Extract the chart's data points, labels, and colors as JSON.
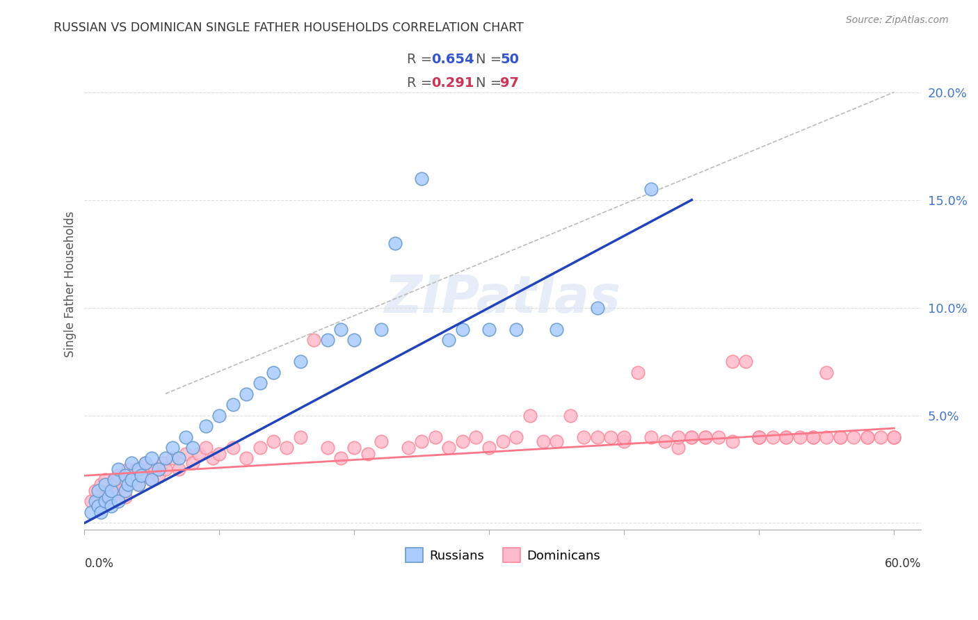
{
  "title": "RUSSIAN VS DOMINICAN SINGLE FATHER HOUSEHOLDS CORRELATION CHART",
  "source": "Source: ZipAtlas.com",
  "ylabel": "Single Father Households",
  "xlim": [
    0.0,
    0.62
  ],
  "ylim": [
    -0.003,
    0.225
  ],
  "ytick_vals": [
    0.0,
    0.05,
    0.1,
    0.15,
    0.2
  ],
  "ytick_labels": [
    "",
    "5.0%",
    "10.0%",
    "15.0%",
    "20.0%"
  ],
  "watermark": "ZIPatlas",
  "russian_color_face": "#aaccff",
  "russian_color_edge": "#6699cc",
  "dominican_color_face": "#ffbbcc",
  "dominican_color_edge": "#ff8899",
  "russian_line_color": "#2244bb",
  "dominican_line_color": "#ff7788",
  "dashed_line_color": "#bbbbbb",
  "title_color": "#333333",
  "source_color": "#888888",
  "ytick_color": "#4477cc",
  "ylabel_color": "#555555",
  "grid_color": "#dddddd",
  "russian_R": 0.654,
  "russian_N": 50,
  "dominican_R": 0.291,
  "dominican_N": 97,
  "russian_x": [
    0.005,
    0.008,
    0.01,
    0.01,
    0.012,
    0.015,
    0.015,
    0.018,
    0.02,
    0.02,
    0.022,
    0.025,
    0.025,
    0.03,
    0.03,
    0.032,
    0.035,
    0.035,
    0.04,
    0.04,
    0.042,
    0.045,
    0.05,
    0.05,
    0.055,
    0.06,
    0.065,
    0.07,
    0.075,
    0.08,
    0.09,
    0.1,
    0.11,
    0.12,
    0.13,
    0.14,
    0.16,
    0.18,
    0.19,
    0.2,
    0.22,
    0.23,
    0.25,
    0.27,
    0.28,
    0.3,
    0.32,
    0.35,
    0.38,
    0.42
  ],
  "russian_y": [
    0.005,
    0.01,
    0.008,
    0.015,
    0.005,
    0.01,
    0.018,
    0.012,
    0.008,
    0.015,
    0.02,
    0.01,
    0.025,
    0.015,
    0.022,
    0.018,
    0.02,
    0.028,
    0.018,
    0.025,
    0.022,
    0.028,
    0.02,
    0.03,
    0.025,
    0.03,
    0.035,
    0.03,
    0.04,
    0.035,
    0.045,
    0.05,
    0.055,
    0.06,
    0.065,
    0.07,
    0.075,
    0.085,
    0.09,
    0.085,
    0.09,
    0.13,
    0.16,
    0.085,
    0.09,
    0.09,
    0.09,
    0.09,
    0.1,
    0.155
  ],
  "dominican_x": [
    0.005,
    0.008,
    0.01,
    0.012,
    0.015,
    0.015,
    0.018,
    0.02,
    0.022,
    0.025,
    0.025,
    0.028,
    0.03,
    0.03,
    0.032,
    0.035,
    0.038,
    0.04,
    0.042,
    0.045,
    0.048,
    0.05,
    0.052,
    0.055,
    0.058,
    0.06,
    0.065,
    0.07,
    0.075,
    0.08,
    0.085,
    0.09,
    0.095,
    0.1,
    0.11,
    0.12,
    0.13,
    0.14,
    0.15,
    0.16,
    0.17,
    0.18,
    0.19,
    0.2,
    0.21,
    0.22,
    0.24,
    0.26,
    0.28,
    0.3,
    0.32,
    0.34,
    0.36,
    0.38,
    0.4,
    0.42,
    0.44,
    0.46,
    0.48,
    0.5,
    0.52,
    0.54,
    0.56,
    0.58,
    0.6,
    0.25,
    0.27,
    0.29,
    0.31,
    0.33,
    0.35,
    0.37,
    0.39,
    0.41,
    0.43,
    0.45,
    0.47,
    0.49,
    0.51,
    0.53,
    0.55,
    0.57,
    0.59,
    0.44,
    0.46,
    0.48,
    0.5,
    0.52,
    0.54,
    0.56,
    0.58,
    0.6,
    0.6,
    0.55,
    0.5,
    0.45,
    0.4
  ],
  "dominican_y": [
    0.01,
    0.015,
    0.01,
    0.018,
    0.012,
    0.02,
    0.015,
    0.012,
    0.018,
    0.015,
    0.022,
    0.018,
    0.012,
    0.02,
    0.025,
    0.02,
    0.025,
    0.018,
    0.022,
    0.028,
    0.025,
    0.02,
    0.025,
    0.022,
    0.028,
    0.025,
    0.03,
    0.025,
    0.032,
    0.028,
    0.032,
    0.035,
    0.03,
    0.032,
    0.035,
    0.03,
    0.035,
    0.038,
    0.035,
    0.04,
    0.085,
    0.035,
    0.03,
    0.035,
    0.032,
    0.038,
    0.035,
    0.04,
    0.038,
    0.035,
    0.04,
    0.038,
    0.05,
    0.04,
    0.038,
    0.04,
    0.035,
    0.04,
    0.038,
    0.04,
    0.04,
    0.04,
    0.04,
    0.04,
    0.04,
    0.038,
    0.035,
    0.04,
    0.038,
    0.05,
    0.038,
    0.04,
    0.04,
    0.07,
    0.038,
    0.04,
    0.04,
    0.075,
    0.04,
    0.04,
    0.07,
    0.04,
    0.04,
    0.04,
    0.04,
    0.075,
    0.04,
    0.04,
    0.04,
    0.04,
    0.04,
    0.04,
    0.04,
    0.04,
    0.04,
    0.04,
    0.04
  ],
  "russian_line_x": [
    0.0,
    0.45
  ],
  "russian_line_y": [
    0.0,
    0.15
  ],
  "dominican_line_x": [
    0.0,
    0.6
  ],
  "dominican_line_y": [
    0.022,
    0.044
  ],
  "diag_line_x": [
    0.06,
    0.6
  ],
  "diag_line_y": [
    0.06,
    0.2
  ]
}
